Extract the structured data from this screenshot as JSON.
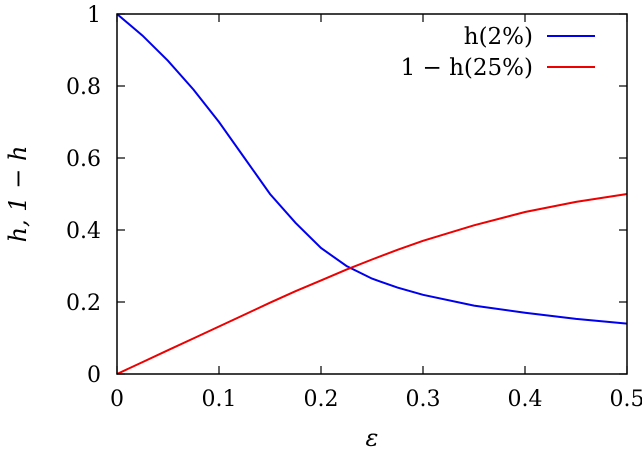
{
  "chart_data": {
    "type": "line",
    "title": "",
    "xlabel": "ε",
    "ylabel": "h, 1 − h",
    "xlim": [
      0,
      0.5
    ],
    "ylim": [
      0,
      1
    ],
    "grid": false,
    "legend_position": "top-right",
    "x_ticks": [
      0,
      0.1,
      0.2,
      0.3,
      0.4,
      0.5
    ],
    "x_tick_labels": [
      "0",
      "0.1",
      "0.2",
      "0.3",
      "0.4",
      "0.5"
    ],
    "y_ticks": [
      0,
      0.2,
      0.4,
      0.6,
      0.8,
      1
    ],
    "y_tick_labels": [
      "0",
      "0.2",
      "0.4",
      "0.6",
      "0.8",
      "1"
    ],
    "series": [
      {
        "name": "h(2%)",
        "color": "#0000ee",
        "x": [
          0,
          0.025,
          0.05,
          0.075,
          0.1,
          0.125,
          0.15,
          0.175,
          0.2,
          0.225,
          0.25,
          0.275,
          0.3,
          0.35,
          0.4,
          0.45,
          0.5
        ],
        "y": [
          1.0,
          0.94,
          0.87,
          0.79,
          0.7,
          0.6,
          0.5,
          0.42,
          0.35,
          0.3,
          0.265,
          0.24,
          0.22,
          0.19,
          0.17,
          0.153,
          0.14
        ]
      },
      {
        "name": "1 − h(25%)",
        "color": "#ee0000",
        "x": [
          0,
          0.025,
          0.05,
          0.075,
          0.1,
          0.125,
          0.15,
          0.175,
          0.2,
          0.225,
          0.25,
          0.275,
          0.3,
          0.35,
          0.4,
          0.45,
          0.5
        ],
        "y": [
          0.0,
          0.033,
          0.066,
          0.099,
          0.132,
          0.165,
          0.198,
          0.23,
          0.26,
          0.29,
          0.318,
          0.345,
          0.37,
          0.413,
          0.45,
          0.478,
          0.5
        ]
      }
    ]
  }
}
